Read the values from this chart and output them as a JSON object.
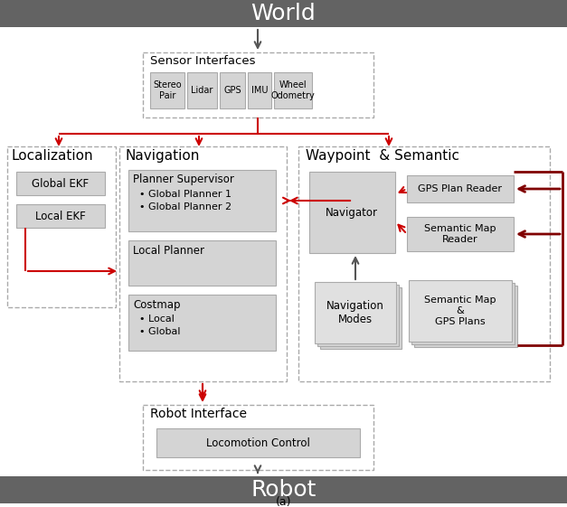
{
  "bg_color": "#ffffff",
  "dark_bar_color": "#636363",
  "light_box_color": "#d4d4d4",
  "lighter_box_color": "#e0e0e0",
  "red_arrow": "#cc0000",
  "dark_red_bracket": "#800000",
  "title": "World",
  "bottom_title": "Robot",
  "caption": "(a)",
  "sensor_label": "Sensor Interfaces",
  "sensor_items": [
    "Stereo\nPair",
    "Lidar",
    "GPS",
    "IMU",
    "Wheel\nOdometry"
  ],
  "localization_label": "Localization",
  "localization_items": [
    "Global EKF",
    "Local EKF"
  ],
  "navigation_label": "Navigation",
  "planner_supervisor_label": "Planner Supervisor",
  "planner_items": [
    "• Global Planner 1",
    "• Global Planner 2"
  ],
  "local_planner_label": "Local Planner",
  "costmap_label": "Costmap",
  "costmap_items": [
    "• Local",
    "• Global"
  ],
  "waypoint_label": "Waypoint  & Semantic",
  "navigator_label": "Navigator",
  "nav_modes_label": "Navigation\nModes",
  "gps_reader_label": "GPS Plan Reader",
  "semantic_reader_label": "Semantic Map\nReader",
  "semantic_map_label": "Semantic Map\n&\nGPS Plans",
  "robot_interface_label": "Robot Interface",
  "locomotion_label": "Locomotion Control"
}
